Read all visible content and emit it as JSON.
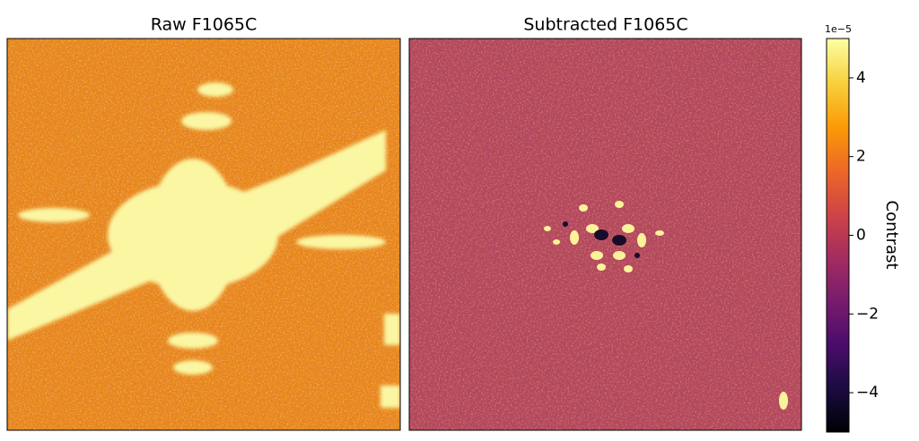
{
  "chart_data": {
    "type": "image",
    "panels": [
      {
        "title": "Raw F1065C"
      },
      {
        "title": "Subtracted F1065C"
      }
    ],
    "colorbar": {
      "label": "Contrast",
      "offset_text": "1e−5",
      "colormap": "inferno",
      "lim": [
        -5,
        5
      ],
      "ticks": [
        {
          "value": -4,
          "label": "−4"
        },
        {
          "value": -2,
          "label": "−2"
        },
        0,
        2,
        4
      ]
    }
  }
}
